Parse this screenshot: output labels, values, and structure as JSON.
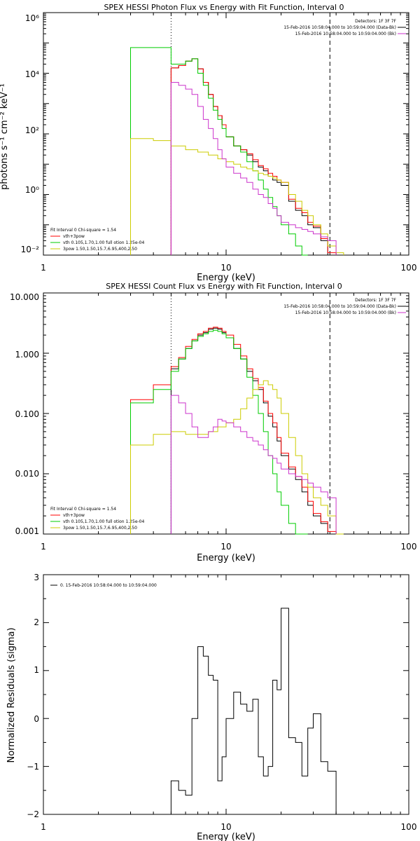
{
  "chart_data": [
    {
      "type": "line",
      "title": "SPEX HESSI Photon Flux vs Energy with Fit Function, Interval 0",
      "xlabel": "Energy (keV)",
      "ylabel": "photons s⁻¹ cm⁻² keV⁻¹",
      "xscale": "log",
      "yscale": "log",
      "xlim": [
        1,
        100
      ],
      "ylim": [
        0.01,
        1000000
      ],
      "xticks": [
        "1",
        "10",
        "100"
      ],
      "yticks": [
        "10⁻²",
        "10⁰",
        "10²",
        "10⁴",
        "10⁶"
      ],
      "vlines": [
        {
          "x": 5,
          "style": "dotted"
        },
        {
          "x": 37,
          "style": "dashed"
        }
      ],
      "info_top": [
        "Detectors: 1F 3F 7F",
        "15-Feb-2016 10:58:04.000 to 10:59:04.000 (Data-Bk)",
        "15-Feb-2016 10:58:04.000 to 10:59:04.000 (Bk)"
      ],
      "info_top_colors": [
        "#000000",
        "#000000",
        "#cc33cc"
      ],
      "legend": [
        "Fit Interval 0    Chi-square = 1.54",
        "vth+3pow",
        "vth 0.105,1.70,1.00  full otion 1.25e-04",
        "3pow 1.50,1.50,15.7,6.95,400,2.50"
      ],
      "legend_colors": [
        "#000000",
        "#ff0000",
        "#00cc00",
        "#cccc00"
      ],
      "series": [
        {
          "color": "#000000",
          "x": [
            5,
            5.5,
            6,
            6.5,
            7,
            7.5,
            8,
            8.5,
            9,
            9.5,
            10,
            11,
            12,
            13,
            14,
            15,
            16,
            17,
            18,
            19,
            20,
            22,
            24,
            26,
            28,
            30,
            33,
            36,
            40
          ],
          "values": [
            15000,
            18000,
            25000,
            30000,
            14000,
            5000,
            2000,
            800,
            400,
            200,
            80,
            40,
            30,
            20,
            12,
            8,
            6,
            4,
            3,
            2.5,
            2,
            0.6,
            0.3,
            0.2,
            0.1,
            0.08,
            0.03,
            0.01,
            0.01
          ]
        },
        {
          "color": "#ff0000",
          "x": [
            5,
            5.5,
            6,
            6.5,
            7,
            7.5,
            8,
            8.5,
            9,
            9.5,
            10,
            11,
            12,
            13,
            14,
            15,
            16,
            17,
            18,
            19,
            20,
            22,
            24,
            26,
            28,
            30,
            33,
            36,
            40
          ],
          "values": [
            15000,
            18000,
            25000,
            30000,
            14000,
            5000,
            2000,
            800,
            400,
            200,
            80,
            40,
            30,
            22,
            14,
            9,
            7,
            5,
            4,
            3,
            2.5,
            0.7,
            0.35,
            0.25,
            0.12,
            0.09,
            0.035,
            0.012,
            0.01
          ]
        },
        {
          "color": "#00cc00",
          "x": [
            3,
            4,
            5,
            5.5,
            6,
            6.5,
            7,
            7.5,
            8,
            8.5,
            9,
            9.5,
            10,
            11,
            12,
            13,
            14,
            15,
            16,
            17,
            18,
            19,
            20,
            22,
            24,
            26,
            28
          ],
          "values": [
            70000,
            70000,
            20000,
            20000,
            25000,
            30000,
            10000,
            4000,
            1500,
            600,
            300,
            150,
            80,
            40,
            25,
            12,
            6,
            3,
            1.5,
            0.8,
            0.4,
            0.2,
            0.1,
            0.05,
            0.02,
            0.01,
            0.01
          ]
        },
        {
          "color": "#cccc00",
          "x": [
            3,
            4,
            5,
            6,
            7,
            8,
            9,
            10,
            11,
            12,
            13,
            14,
            15,
            16,
            17,
            18,
            19,
            20,
            22,
            24,
            26,
            28,
            30,
            33,
            36,
            40,
            44
          ],
          "values": [
            70,
            60,
            40,
            30,
            25,
            20,
            15,
            12,
            10,
            8,
            7,
            6,
            5,
            4.5,
            4,
            3.5,
            3,
            2.5,
            1,
            0.6,
            0.3,
            0.2,
            0.1,
            0.05,
            0.02,
            0.012,
            0.01
          ]
        },
        {
          "color": "#cc33cc",
          "x": [
            5,
            5.5,
            6,
            6.5,
            7,
            7.5,
            8,
            8.5,
            9,
            9.5,
            10,
            11,
            12,
            13,
            14,
            15,
            16,
            17,
            18,
            19,
            20,
            22,
            24,
            26,
            28,
            30,
            33,
            36,
            40
          ],
          "values": [
            5000,
            4000,
            3000,
            2000,
            800,
            300,
            150,
            70,
            30,
            15,
            8,
            5,
            3.5,
            2.5,
            1.5,
            1,
            0.8,
            0.5,
            0.35,
            0.2,
            0.12,
            0.1,
            0.08,
            0.07,
            0.06,
            0.05,
            0.04,
            0.03,
            0.02
          ]
        }
      ]
    },
    {
      "type": "line",
      "title": "SPEX HESSI Count Flux vs Energy with Fit Function, Interval 0",
      "xlabel": "Energy (keV)",
      "ylabel": "",
      "xscale": "log",
      "yscale": "log",
      "xlim": [
        1,
        100
      ],
      "ylim": [
        0.001,
        10
      ],
      "xticks": [
        "1",
        "10",
        "100"
      ],
      "yticks": [
        "0.001",
        "0.010",
        "0.100",
        "1.000",
        "10.000"
      ],
      "vlines": [
        {
          "x": 5,
          "style": "dotted"
        },
        {
          "x": 37,
          "style": "dashed"
        }
      ],
      "info_top": [
        "Detectors: 1F 3F 7F",
        "15-Feb-2016 10:58:04.000 to 10:59:04.000 (Data-Bk)",
        "15-Feb-2016 10:58:04.000 to 10:59:04.000 (Bk)"
      ],
      "info_top_colors": [
        "#000000",
        "#000000",
        "#cc33cc"
      ],
      "legend": [
        "Fit Interval 0    Chi-square = 1.54",
        "vth+3pow",
        "vth 0.105,1.70,1.00  full otion 1.25e-04",
        "3pow 1.50,1.50,15.7,6.95,400,2.50"
      ],
      "legend_colors": [
        "#000000",
        "#ff0000",
        "#00cc00",
        "#cccc00"
      ],
      "series": [
        {
          "color": "#000000",
          "x": [
            5,
            5.5,
            6,
            6.5,
            7,
            7.5,
            8,
            8.5,
            9,
            9.5,
            10,
            11,
            12,
            13,
            14,
            15,
            16,
            17,
            18,
            19,
            20,
            22,
            24,
            26,
            28,
            30,
            33,
            36,
            40
          ],
          "values": [
            0.55,
            0.8,
            1.2,
            1.6,
            2,
            2.2,
            2.5,
            2.6,
            2.5,
            2.2,
            1.8,
            1.2,
            0.8,
            0.5,
            0.35,
            0.25,
            0.15,
            0.09,
            0.06,
            0.035,
            0.02,
            0.012,
            0.008,
            0.005,
            0.003,
            0.002,
            0.0015,
            0.001,
            0.001
          ]
        },
        {
          "color": "#ff0000",
          "x": [
            3,
            4,
            5,
            5.5,
            6,
            6.5,
            7,
            7.5,
            8,
            8.5,
            9,
            9.5,
            10,
            11,
            12,
            13,
            14,
            15,
            16,
            17,
            18,
            19,
            20,
            22,
            24,
            26,
            28,
            30,
            33,
            36,
            40
          ],
          "values": [
            0.17,
            0.3,
            0.6,
            0.85,
            1.3,
            1.7,
            2.1,
            2.3,
            2.6,
            2.7,
            2.6,
            2.3,
            2,
            1.4,
            0.9,
            0.55,
            0.38,
            0.27,
            0.16,
            0.1,
            0.07,
            0.04,
            0.022,
            0.013,
            0.009,
            0.006,
            0.0035,
            0.0022,
            0.0016,
            0.0011,
            0.001
          ]
        },
        {
          "color": "#00cc00",
          "x": [
            3,
            4,
            5,
            5.5,
            6,
            6.5,
            7,
            7.5,
            8,
            8.5,
            9,
            9.5,
            10,
            11,
            12,
            13,
            14,
            15,
            16,
            17,
            18,
            19,
            20,
            22,
            24,
            26,
            28
          ],
          "values": [
            0.15,
            0.25,
            0.5,
            0.8,
            1.2,
            1.6,
            1.9,
            2.1,
            2.3,
            2.4,
            2.3,
            2.1,
            1.8,
            1.2,
            0.8,
            0.4,
            0.2,
            0.1,
            0.05,
            0.02,
            0.01,
            0.005,
            0.003,
            0.0015,
            0.001,
            0.001,
            0.001
          ]
        },
        {
          "color": "#cccc00",
          "x": [
            3,
            4,
            5,
            6,
            7,
            8,
            9,
            10,
            11,
            12,
            13,
            14,
            15,
            16,
            17,
            18,
            19,
            20,
            22,
            24,
            26,
            28,
            30,
            33,
            36,
            40,
            44
          ],
          "values": [
            0.03,
            0.045,
            0.05,
            0.045,
            0.045,
            0.05,
            0.06,
            0.07,
            0.08,
            0.12,
            0.18,
            0.25,
            0.3,
            0.35,
            0.3,
            0.25,
            0.18,
            0.1,
            0.04,
            0.02,
            0.01,
            0.006,
            0.004,
            0.003,
            0.002,
            0.001,
            0.001
          ]
        },
        {
          "color": "#cc33cc",
          "x": [
            5,
            5.5,
            6,
            6.5,
            7,
            7.5,
            8,
            8.5,
            9,
            9.5,
            10,
            11,
            12,
            13,
            14,
            15,
            16,
            17,
            18,
            19,
            20,
            22,
            24,
            26,
            28,
            30,
            33,
            36,
            40
          ],
          "values": [
            0.2,
            0.15,
            0.1,
            0.06,
            0.04,
            0.04,
            0.05,
            0.06,
            0.08,
            0.075,
            0.07,
            0.06,
            0.05,
            0.04,
            0.035,
            0.03,
            0.025,
            0.02,
            0.018,
            0.015,
            0.012,
            0.01,
            0.009,
            0.008,
            0.007,
            0.006,
            0.005,
            0.004,
            0.003
          ]
        }
      ]
    },
    {
      "type": "line",
      "title": "",
      "xlabel": "Energy (keV)",
      "ylabel": "Normalized Residuals (sigma)",
      "xscale": "log",
      "yscale": "linear",
      "xlim": [
        1,
        100
      ],
      "ylim": [
        -2,
        3
      ],
      "xticks": [
        "1",
        "10",
        "100"
      ],
      "yticks": [
        "−2",
        "−1",
        "0",
        "1",
        "2",
        "3"
      ],
      "legend": [
        "0. 15-Feb-2016 10:58:04.000 to 10:59:04.000"
      ],
      "legend_colors": [
        "#000000"
      ],
      "series": [
        {
          "color": "#000000",
          "x": [
            5,
            5.5,
            6,
            6.5,
            7,
            7.5,
            8,
            8.5,
            9,
            9.5,
            10,
            11,
            12,
            13,
            14,
            15,
            16,
            17,
            18,
            19,
            20,
            22,
            24,
            26,
            28,
            30,
            33,
            36,
            40
          ],
          "values": [
            -1.3,
            -1.5,
            -1.6,
            0.0,
            1.5,
            1.3,
            0.9,
            0.8,
            -1.3,
            -0.8,
            0.0,
            0.55,
            0.3,
            0.15,
            0.4,
            -0.8,
            -1.2,
            -1.0,
            0.8,
            0.6,
            2.3,
            -0.4,
            -0.5,
            -1.2,
            -0.2,
            0.1,
            -0.9,
            -1.1,
            -1.3
          ]
        }
      ]
    }
  ]
}
